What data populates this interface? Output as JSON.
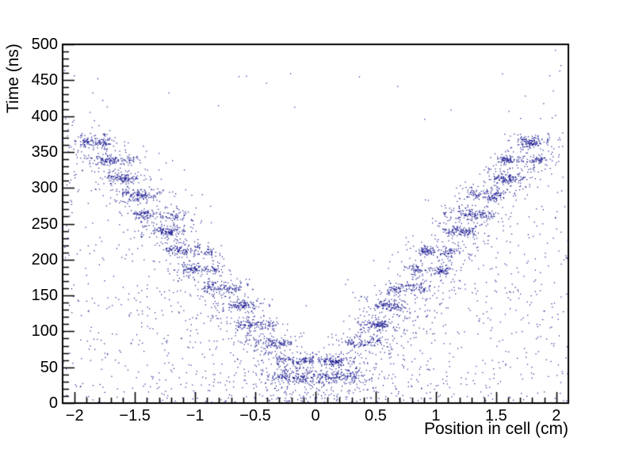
{
  "chart_data": {
    "type": "scatter",
    "title": "",
    "xlabel": "Position in cell (cm)",
    "ylabel": "Time (ns)",
    "xlim": [
      -2.1,
      2.1
    ],
    "ylim": [
      0,
      500
    ],
    "x_major_ticks": [
      -2,
      -1.5,
      -1,
      -0.5,
      0,
      0.5,
      1,
      1.5,
      2
    ],
    "x_tick_labels": [
      "−2",
      "−1.5",
      "−1",
      "−0.5",
      "0",
      "0.5",
      "1",
      "1.5",
      "2"
    ],
    "x_minor_step": 0.1,
    "y_major_ticks": [
      0,
      50,
      100,
      150,
      200,
      250,
      300,
      350,
      400,
      450,
      500
    ],
    "y_tick_labels": [
      "0",
      "50",
      "100",
      "150",
      "200",
      "250",
      "300",
      "350",
      "400",
      "450",
      "500"
    ],
    "y_minor_step": 10,
    "grid": false,
    "legend": "none",
    "marker_color": "#12128c",
    "axis_color": "#000000",
    "background_color": "#ffffff",
    "seed": 20,
    "description": "V-shaped drift-time vs position scatter: dense horizontal band clusters stepping down from time ~365 ns at |x|~1.8 cm to ~37 ns near x~0, mirrored on both arms, over diffuse uniform noise filling the region below the V envelope",
    "bands": [
      {
        "time": 364,
        "x_min": 1.7,
        "x_max": 1.93,
        "count": 115
      },
      {
        "time": 339,
        "x_min": 1.53,
        "x_max": 1.9,
        "count": 135
      },
      {
        "time": 314,
        "x_min": 1.48,
        "x_max": 1.71,
        "count": 110
      },
      {
        "time": 290,
        "x_min": 1.28,
        "x_max": 1.58,
        "count": 120
      },
      {
        "time": 263,
        "x_min": 1.07,
        "x_max": 1.5,
        "count": 130
      },
      {
        "time": 239,
        "x_min": 1.08,
        "x_max": 1.32,
        "count": 105
      },
      {
        "time": 212,
        "x_min": 0.88,
        "x_max": 1.22,
        "count": 120
      },
      {
        "time": 186,
        "x_min": 0.8,
        "x_max": 1.1,
        "count": 110
      },
      {
        "time": 161,
        "x_min": 0.62,
        "x_max": 0.93,
        "count": 110
      },
      {
        "time": 136,
        "x_min": 0.48,
        "x_max": 0.74,
        "count": 100
      },
      {
        "time": 110,
        "x_min": 0.34,
        "x_max": 0.62,
        "count": 100
      },
      {
        "time": 85,
        "x_min": 0.22,
        "x_max": 0.52,
        "count": 90
      },
      {
        "time": 59,
        "x_min": 0.04,
        "x_max": 0.33,
        "count": 105
      },
      {
        "time": 37,
        "x_min": 0.06,
        "x_max": 0.32,
        "count": 75
      }
    ],
    "band_time_sigma": 3.8,
    "band_mirror": true,
    "halo_per_band": 42,
    "halo_x_pad": 0.13,
    "halo_t_below": 17,
    "halo_t_above": 13,
    "noise": {
      "background_count": 1400,
      "envelope_t0": 42,
      "envelope_slope": 186,
      "envelope_max": 435,
      "above_envelope_count": 85,
      "above_envelope_t_range": 90,
      "top_outlier_count": 14,
      "top_outlier_t_min": 388,
      "top_outlier_t_max": 462,
      "center_strip": {
        "x_min": -0.4,
        "x_max": 0.47,
        "t_min": 29,
        "t_max": 46,
        "count": 70
      }
    }
  }
}
